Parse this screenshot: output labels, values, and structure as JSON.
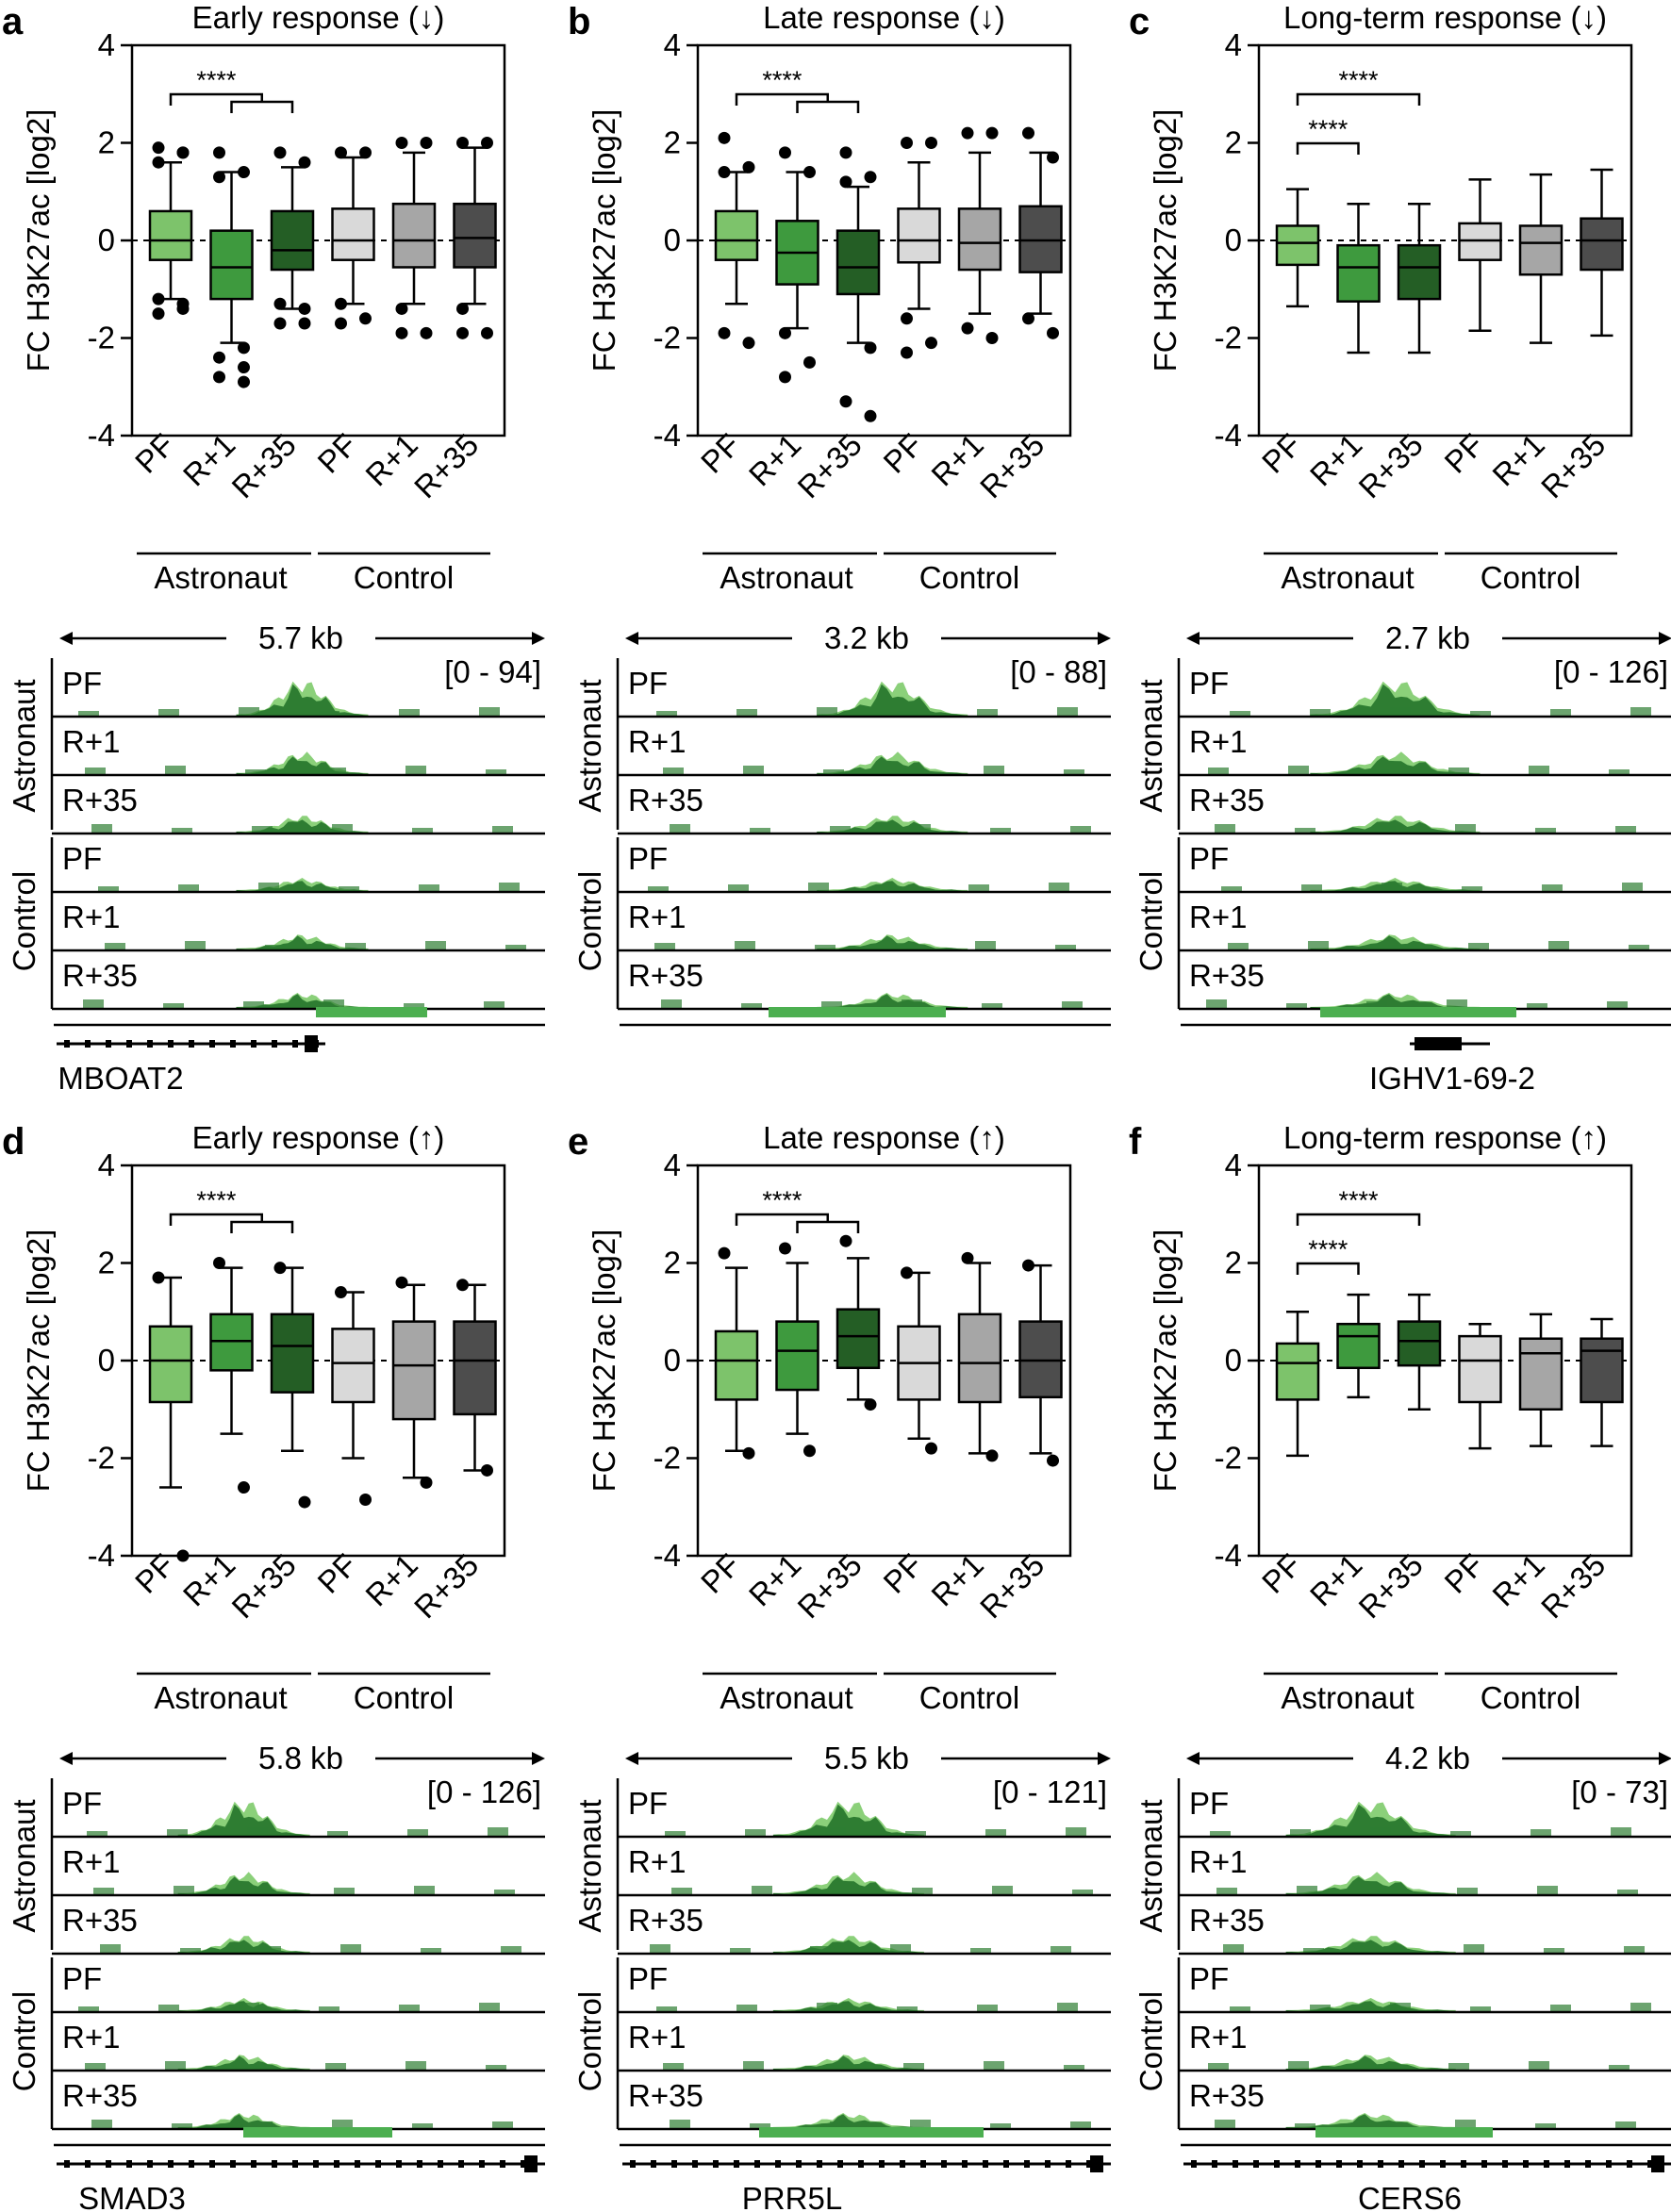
{
  "figure": {
    "axis_label": "FC H3K27ac [log2]",
    "yticks": [
      "4",
      "2",
      "0",
      "-2",
      "-4"
    ],
    "conditions": [
      "PF",
      "R+1",
      "R+35",
      "PF",
      "R+1",
      "R+35"
    ],
    "groups": [
      "Astronaut",
      "Control"
    ],
    "track_group_labels": [
      "Astronaut",
      "Control"
    ],
    "track_labels": [
      "PF",
      "R+1",
      "R+35",
      "PF",
      "R+1",
      "R+35"
    ],
    "significance": "****",
    "colors": {
      "pf_astronaut": "#7DC36B",
      "r1_astronaut": "#3E9A3E",
      "r35_astronaut": "#245E25",
      "pf_control": "#D9D9D9",
      "r1_control": "#A6A6A6",
      "r35_control": "#4D4D4D",
      "track_dark": "#2E7D32",
      "track_light": "#8BD07A",
      "peak_bar": "#4CAF50"
    }
  },
  "panels": [
    {
      "letter": "a",
      "title": "Early response (↓)",
      "track_span": "5.7 kb",
      "track_range": "[0 - 94]",
      "gene": "MBOAT2"
    },
    {
      "letter": "b",
      "title": "Late response (↓)",
      "track_span": "3.2 kb",
      "track_range": "[0 - 88]",
      "gene": ""
    },
    {
      "letter": "c",
      "title": "Long-term response (↓)",
      "track_span": "2.7 kb",
      "track_range": "[0 - 126]",
      "gene": "IGHV1-69-2"
    },
    {
      "letter": "d",
      "title": "Early response (↑)",
      "track_span": "5.8 kb",
      "track_range": "[0 - 126]",
      "gene": "SMAD3"
    },
    {
      "letter": "e",
      "title": "Late response (↑)",
      "track_span": "5.5 kb",
      "track_range": "[0 - 121]",
      "gene": "PRR5L"
    },
    {
      "letter": "f",
      "title": "Long-term response (↑)",
      "track_span": "4.2 kb",
      "track_range": "[0 - 73]",
      "gene": "CERS6"
    }
  ],
  "chart_data": [
    {
      "type": "box",
      "panel": "a",
      "title": "Early response (↓)",
      "ylabel": "FC H3K27ac [log2]",
      "ylim": [
        -4,
        4
      ],
      "categories": [
        "PF",
        "R+1",
        "R+35",
        "PF",
        "R+1",
        "R+35"
      ],
      "groups": [
        "Astronaut",
        "Control"
      ],
      "significance": [
        {
          "label": "****",
          "from": 0,
          "to": [
            1,
            2
          ],
          "style": "bracket"
        }
      ],
      "boxes": [
        {
          "q1": -0.4,
          "median": 0.0,
          "q3": 0.6,
          "wlo": -1.2,
          "whi": 1.6,
          "outliers": [
            1.9,
            1.8,
            1.6,
            1.8,
            -1.2,
            -1.3,
            -1.5,
            -1.4
          ]
        },
        {
          "q1": -1.2,
          "median": -0.55,
          "q3": 0.2,
          "wlo": -2.1,
          "whi": 1.4,
          "outliers": [
            1.8,
            1.4,
            1.3,
            -2.2,
            -2.4,
            -2.6,
            -2.8,
            -2.9
          ]
        },
        {
          "q1": -0.6,
          "median": -0.2,
          "q3": 0.6,
          "wlo": -1.4,
          "whi": 1.5,
          "outliers": [
            1.8,
            1.6,
            -1.3,
            -1.4,
            -1.7,
            -1.7
          ]
        },
        {
          "q1": -0.4,
          "median": 0.0,
          "q3": 0.65,
          "wlo": -1.3,
          "whi": 1.7,
          "outliers": [
            1.8,
            1.8,
            -1.3,
            -1.6,
            -1.7
          ]
        },
        {
          "q1": -0.55,
          "median": 0.0,
          "q3": 0.75,
          "wlo": -1.3,
          "whi": 1.8,
          "outliers": [
            2.0,
            2.0,
            -1.4,
            -1.9,
            -1.9
          ]
        },
        {
          "q1": -0.55,
          "median": 0.05,
          "q3": 0.75,
          "wlo": -1.3,
          "whi": 1.9,
          "outliers": [
            2.0,
            2.0,
            -1.4,
            -1.9,
            -1.9
          ]
        }
      ]
    },
    {
      "type": "box",
      "panel": "b",
      "title": "Late response (↓)",
      "ylabel": "FC H3K27ac [log2]",
      "ylim": [
        -4,
        4
      ],
      "categories": [
        "PF",
        "R+1",
        "R+35",
        "PF",
        "R+1",
        "R+35"
      ],
      "groups": [
        "Astronaut",
        "Control"
      ],
      "significance": [
        {
          "label": "****",
          "from": 0,
          "to": [
            1,
            2
          ],
          "style": "bracket"
        }
      ],
      "boxes": [
        {
          "q1": -0.4,
          "median": 0.0,
          "q3": 0.6,
          "wlo": -1.3,
          "whi": 1.4,
          "outliers": [
            2.1,
            1.5,
            1.4,
            -2.1,
            -1.9
          ]
        },
        {
          "q1": -0.9,
          "median": -0.25,
          "q3": 0.4,
          "wlo": -1.8,
          "whi": 1.4,
          "outliers": [
            1.8,
            1.4,
            -1.9,
            -2.5,
            -2.8
          ]
        },
        {
          "q1": -1.1,
          "median": -0.55,
          "q3": 0.2,
          "wlo": -2.1,
          "whi": 1.1,
          "outliers": [
            1.8,
            1.3,
            1.2,
            -2.2,
            -3.3,
            -3.6
          ]
        },
        {
          "q1": -0.45,
          "median": 0.0,
          "q3": 0.65,
          "wlo": -1.4,
          "whi": 1.6,
          "outliers": [
            2.0,
            2.0,
            -1.6,
            -2.1,
            -2.3
          ]
        },
        {
          "q1": -0.6,
          "median": -0.05,
          "q3": 0.65,
          "wlo": -1.5,
          "whi": 1.8,
          "outliers": [
            2.2,
            2.2,
            -1.8,
            -2.0
          ]
        },
        {
          "q1": -0.65,
          "median": 0.0,
          "q3": 0.7,
          "wlo": -1.5,
          "whi": 1.8,
          "outliers": [
            2.2,
            1.7,
            -1.6,
            -1.9
          ]
        }
      ]
    },
    {
      "type": "box",
      "panel": "c",
      "title": "Long-term response (↓)",
      "ylabel": "FC H3K27ac [log2]",
      "ylim": [
        -4,
        4
      ],
      "categories": [
        "PF",
        "R+1",
        "R+35",
        "PF",
        "R+1",
        "R+35"
      ],
      "groups": [
        "Astronaut",
        "Control"
      ],
      "significance": [
        {
          "label": "****",
          "from": 0,
          "to": [
            1
          ],
          "style": "line"
        },
        {
          "label": "****",
          "from": 0,
          "to": [
            2
          ],
          "style": "line"
        }
      ],
      "boxes": [
        {
          "q1": -0.5,
          "median": -0.05,
          "q3": 0.3,
          "wlo": -1.35,
          "whi": 1.05,
          "outliers": []
        },
        {
          "q1": -1.25,
          "median": -0.55,
          "q3": -0.1,
          "wlo": -2.3,
          "whi": 0.75,
          "outliers": []
        },
        {
          "q1": -1.2,
          "median": -0.55,
          "q3": -0.1,
          "wlo": -2.3,
          "whi": 0.75,
          "outliers": []
        },
        {
          "q1": -0.4,
          "median": 0.0,
          "q3": 0.35,
          "wlo": -1.85,
          "whi": 1.25,
          "outliers": []
        },
        {
          "q1": -0.7,
          "median": -0.05,
          "q3": 0.3,
          "wlo": -2.1,
          "whi": 1.35,
          "outliers": []
        },
        {
          "q1": -0.6,
          "median": 0.0,
          "q3": 0.45,
          "wlo": -1.95,
          "whi": 1.45,
          "outliers": []
        }
      ]
    },
    {
      "type": "box",
      "panel": "d",
      "title": "Early response (↑)",
      "ylabel": "FC H3K27ac [log2]",
      "ylim": [
        -4,
        4
      ],
      "categories": [
        "PF",
        "R+1",
        "R+35",
        "PF",
        "R+1",
        "R+35"
      ],
      "groups": [
        "Astronaut",
        "Control"
      ],
      "significance": [
        {
          "label": "****",
          "from": 0,
          "to": [
            1,
            2
          ],
          "style": "bracket"
        }
      ],
      "boxes": [
        {
          "q1": -0.85,
          "median": 0.0,
          "q3": 0.7,
          "wlo": -2.6,
          "whi": 1.7,
          "outliers": [
            1.7,
            -4.0
          ]
        },
        {
          "q1": -0.2,
          "median": 0.4,
          "q3": 0.95,
          "wlo": -1.5,
          "whi": 1.9,
          "outliers": [
            2.0,
            -2.6
          ]
        },
        {
          "q1": -0.65,
          "median": 0.3,
          "q3": 0.95,
          "wlo": -1.85,
          "whi": 1.9,
          "outliers": [
            1.9,
            -2.9
          ]
        },
        {
          "q1": -0.85,
          "median": -0.05,
          "q3": 0.65,
          "wlo": -2.0,
          "whi": 1.4,
          "outliers": [
            1.4,
            -2.85
          ]
        },
        {
          "q1": -1.2,
          "median": -0.1,
          "q3": 0.8,
          "wlo": -2.4,
          "whi": 1.55,
          "outliers": [
            1.6,
            -2.5
          ]
        },
        {
          "q1": -1.1,
          "median": 0.0,
          "q3": 0.8,
          "wlo": -2.25,
          "whi": 1.55,
          "outliers": [
            1.55,
            -2.25
          ]
        }
      ]
    },
    {
      "type": "box",
      "panel": "e",
      "title": "Late response (↑)",
      "ylabel": "FC H3K27ac [log2]",
      "ylim": [
        -4,
        4
      ],
      "categories": [
        "PF",
        "R+1",
        "R+35",
        "PF",
        "R+1",
        "R+35"
      ],
      "groups": [
        "Astronaut",
        "Control"
      ],
      "significance": [
        {
          "label": "****",
          "from": 0,
          "to": [
            1,
            2
          ],
          "style": "bracket"
        }
      ],
      "boxes": [
        {
          "q1": -0.8,
          "median": 0.0,
          "q3": 0.6,
          "wlo": -1.85,
          "whi": 1.9,
          "outliers": [
            2.2,
            -1.9
          ]
        },
        {
          "q1": -0.6,
          "median": 0.2,
          "q3": 0.8,
          "wlo": -1.5,
          "whi": 2.0,
          "outliers": [
            2.3,
            -1.85
          ]
        },
        {
          "q1": -0.15,
          "median": 0.5,
          "q3": 1.05,
          "wlo": -0.8,
          "whi": 2.1,
          "outliers": [
            2.45,
            -0.9
          ]
        },
        {
          "q1": -0.8,
          "median": -0.05,
          "q3": 0.7,
          "wlo": -1.6,
          "whi": 1.8,
          "outliers": [
            1.8,
            -1.8
          ]
        },
        {
          "q1": -0.85,
          "median": -0.05,
          "q3": 0.95,
          "wlo": -1.9,
          "whi": 2.0,
          "outliers": [
            2.1,
            -1.95
          ]
        },
        {
          "q1": -0.75,
          "median": 0.0,
          "q3": 0.8,
          "wlo": -1.9,
          "whi": 1.95,
          "outliers": [
            1.95,
            -2.05
          ]
        }
      ]
    },
    {
      "type": "box",
      "panel": "f",
      "title": "Long-term response (↑)",
      "ylabel": "FC H3K27ac [log2]",
      "ylim": [
        -4,
        4
      ],
      "categories": [
        "PF",
        "R+1",
        "R+35",
        "PF",
        "R+1",
        "R+35"
      ],
      "groups": [
        "Astronaut",
        "Control"
      ],
      "significance": [
        {
          "label": "****",
          "from": 0,
          "to": [
            1
          ],
          "style": "line"
        },
        {
          "label": "****",
          "from": 0,
          "to": [
            2
          ],
          "style": "line"
        }
      ],
      "boxes": [
        {
          "q1": -0.8,
          "median": -0.05,
          "q3": 0.35,
          "wlo": -1.95,
          "whi": 1.0,
          "outliers": []
        },
        {
          "q1": -0.15,
          "median": 0.5,
          "q3": 0.75,
          "wlo": -0.75,
          "whi": 1.35,
          "outliers": []
        },
        {
          "q1": -0.1,
          "median": 0.4,
          "q3": 0.8,
          "wlo": -1.0,
          "whi": 1.35,
          "outliers": []
        },
        {
          "q1": -0.85,
          "median": 0.0,
          "q3": 0.5,
          "wlo": -1.8,
          "whi": 0.75,
          "outliers": []
        },
        {
          "q1": -1.0,
          "median": 0.15,
          "q3": 0.45,
          "wlo": -1.75,
          "whi": 0.95,
          "outliers": []
        },
        {
          "q1": -0.85,
          "median": 0.2,
          "q3": 0.45,
          "wlo": -1.75,
          "whi": 0.85,
          "outliers": []
        }
      ]
    }
  ]
}
